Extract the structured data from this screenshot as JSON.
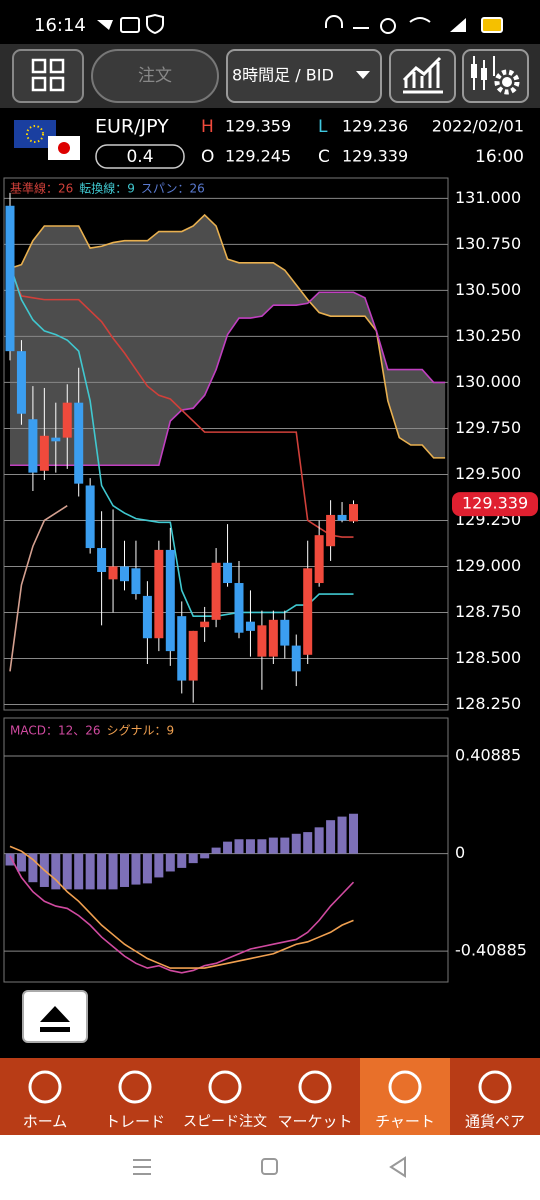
{
  "status": {
    "time": "16:14"
  },
  "toolbar": {
    "order": "注文",
    "timeframe": "8時間足 / BID"
  },
  "quote": {
    "pair": "EUR/JPY",
    "spread": "0.4",
    "date": "2022/02/01",
    "time": "16:00",
    "prices": [
      {
        "label": "H",
        "value": "129.359"
      },
      {
        "label": "L",
        "value": "129.236"
      },
      {
        "label": "O",
        "value": "129.245"
      },
      {
        "label": "C",
        "value": "129.339"
      }
    ]
  },
  "chart_data": [
    {
      "type": "candlestick",
      "ylim": [
        128.22,
        131.1
      ],
      "yticks": [
        {
          "value": 131,
          "label": "131.000"
        },
        {
          "value": 130.75,
          "label": "130.750"
        },
        {
          "value": 130.5,
          "label": "130.500"
        },
        {
          "value": 130.25,
          "label": "130.250"
        },
        {
          "value": 130,
          "label": "130.000"
        },
        {
          "value": 129.75,
          "label": "129.750"
        },
        {
          "value": 129.5,
          "label": "129.500"
        },
        {
          "value": 129.25,
          "label": "129.250"
        },
        {
          "value": 129,
          "label": "129.000"
        },
        {
          "value": 128.75,
          "label": "128.750"
        },
        {
          "value": 128.5,
          "label": "128.500"
        },
        {
          "value": 128.25,
          "label": "128.250"
        }
      ],
      "grid": true,
      "up_color": "#f04a3c",
      "down_color": "#3b9ef0",
      "open": [
        130.96,
        130.17,
        129.8,
        129.52,
        129.7,
        129.7,
        129.89,
        129.44,
        129.1,
        128.93,
        129,
        128.99,
        128.84,
        128.61,
        129.09,
        128.73,
        128.38,
        128.67,
        128.71,
        129.02,
        128.91,
        128.7,
        128.51,
        128.51,
        128.71,
        128.57,
        128.52,
        128.91,
        129.11,
        129.28,
        129.245
      ],
      "high": [
        131.03,
        130.23,
        129.98,
        129.97,
        129.89,
        129.99,
        130.08,
        129.48,
        129.3,
        129.31,
        129.14,
        129.14,
        128.92,
        129.14,
        129.21,
        128.81,
        128.65,
        128.78,
        129.1,
        129.23,
        129.03,
        128.87,
        128.76,
        128.76,
        128.76,
        128.63,
        129.14,
        129.25,
        129.36,
        129.35,
        129.359
      ],
      "low": [
        130.12,
        129.77,
        129.41,
        129.47,
        129.51,
        129.53,
        129.38,
        129.07,
        128.68,
        128.75,
        128.87,
        128.82,
        128.47,
        128.54,
        128.46,
        128.31,
        128.26,
        128.59,
        128.67,
        128.89,
        128.61,
        128.51,
        128.33,
        128.47,
        128.5,
        128.35,
        128.47,
        128.89,
        129.03,
        129.24,
        129.236
      ],
      "close": [
        130.17,
        129.83,
        129.51,
        129.71,
        129.68,
        129.89,
        129.45,
        129.1,
        128.97,
        129,
        128.92,
        128.85,
        128.61,
        129.09,
        128.54,
        128.38,
        128.65,
        128.7,
        129.02,
        128.91,
        128.64,
        128.65,
        128.68,
        128.71,
        128.57,
        128.43,
        128.99,
        129.17,
        129.28,
        129.25,
        129.339
      ],
      "series": [
        {
          "name": "基準線：26",
          "color": "#d0403a",
          "values": [
            130.62,
            130.47,
            130.46,
            130.45,
            130.45,
            130.45,
            130.45,
            130.39,
            130.33,
            130.24,
            130.16,
            130.07,
            129.98,
            129.93,
            129.91,
            129.85,
            129.79,
            129.73,
            129.73,
            129.73,
            129.73,
            129.73,
            129.73,
            129.73,
            129.73,
            129.73,
            129.25,
            129.21,
            129.17,
            129.16,
            129.16
          ]
        },
        {
          "name": "転換線：9",
          "color": "#40c8d0",
          "values": [
            130.64,
            130.45,
            130.34,
            130.28,
            130.26,
            130.23,
            130.17,
            129.9,
            129.44,
            129.33,
            129.29,
            129.26,
            129.25,
            129.24,
            129.24,
            128.87,
            128.73,
            128.73,
            128.73,
            128.74,
            128.75,
            128.75,
            128.75,
            128.75,
            128.75,
            128.79,
            128.79,
            128.85,
            128.85,
            128.85,
            128.85
          ]
        },
        {
          "name": "スパン：26",
          "color": "#5a7ad0",
          "lines": [
            {
              "color": "#e8b050",
              "values": [
                130.62,
                130.64,
                130.77,
                130.85,
                130.85,
                130.85,
                130.85,
                130.73,
                130.74,
                130.76,
                130.77,
                130.77,
                130.77,
                130.82,
                130.82,
                130.82,
                130.85,
                130.91,
                130.85,
                130.67,
                130.65,
                130.65,
                130.65,
                130.65,
                130.61,
                130.53,
                130.45,
                130.38,
                130.36,
                130.36,
                130.36,
                130.36,
                130.28,
                129.9,
                129.7,
                129.66,
                129.66,
                129.59,
                129.59
              ]
            },
            {
              "color": "#c040c0",
              "values": [
                129.55,
                129.55,
                129.55,
                129.55,
                129.55,
                129.55,
                129.55,
                129.55,
                129.55,
                129.55,
                129.55,
                129.55,
                129.55,
                129.55,
                129.79,
                129.85,
                129.86,
                129.93,
                130.07,
                130.26,
                130.35,
                130.35,
                130.36,
                130.42,
                130.42,
                130.42,
                130.43,
                130.49,
                130.49,
                130.49,
                130.49,
                130.46,
                130.28,
                130.07,
                130.07,
                130.07,
                130.07,
                130,
                130
              ]
            },
            {
              "color": "#d4a090",
              "values": [
                128.43,
                128.9,
                129.11,
                129.25,
                129.29,
                129.33
              ]
            }
          ]
        }
      ],
      "current_price": {
        "value": 129.339,
        "label": "129.339"
      }
    },
    {
      "type": "macd",
      "ylim": [
        -0.53,
        0.56
      ],
      "yticks": [
        0.40885,
        0,
        -0.40885
      ],
      "grid": true,
      "histogram": {
        "color": "#7d70b8",
        "values": [
          -0.05,
          -0.075,
          -0.12,
          -0.14,
          -0.15,
          -0.15,
          -0.15,
          -0.15,
          -0.15,
          -0.15,
          -0.14,
          -0.13,
          -0.125,
          -0.1,
          -0.075,
          -0.06,
          -0.04,
          -0.02,
          0.025,
          0.05,
          0.06,
          0.06,
          0.06,
          0.067,
          0.067,
          0.083,
          0.09,
          0.11,
          0.14,
          0.155,
          0.167
        ]
      },
      "series": [
        {
          "name": "MACD：12、26",
          "color": "#d04aa0",
          "values": [
            -0.01,
            -0.1,
            -0.16,
            -0.2,
            -0.22,
            -0.23,
            -0.26,
            -0.3,
            -0.35,
            -0.39,
            -0.43,
            -0.46,
            -0.48,
            -0.47,
            -0.49,
            -0.5,
            -0.49,
            -0.47,
            -0.46,
            -0.44,
            -0.42,
            -0.4,
            -0.39,
            -0.38,
            -0.37,
            -0.36,
            -0.33,
            -0.28,
            -0.22,
            -0.17,
            -0.12
          ]
        },
        {
          "name": "シグナル：9",
          "color": "#f0a050",
          "values": [
            0.03,
            0.01,
            -0.025,
            -0.07,
            -0.11,
            -0.16,
            -0.2,
            -0.25,
            -0.3,
            -0.34,
            -0.38,
            -0.41,
            -0.44,
            -0.46,
            -0.48,
            -0.48,
            -0.48,
            -0.48,
            -0.47,
            -0.46,
            -0.45,
            -0.44,
            -0.43,
            -0.42,
            -0.4,
            -0.38,
            -0.37,
            -0.35,
            -0.33,
            -0.3,
            -0.28
          ]
        }
      ]
    }
  ],
  "nav": [
    {
      "label": "ホーム"
    },
    {
      "label": "トレード"
    },
    {
      "label": "スピード注文"
    },
    {
      "label": "マーケット"
    },
    {
      "label": "チャート"
    },
    {
      "label": "通貨ペア"
    }
  ]
}
